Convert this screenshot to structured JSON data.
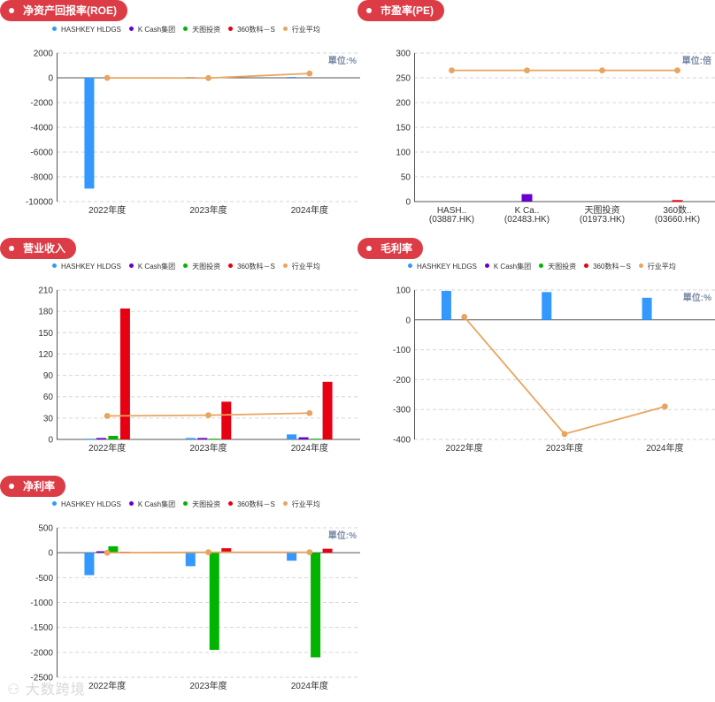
{
  "legend": [
    {
      "name": "HASHKEY HLDGS",
      "color": "#3399ff"
    },
    {
      "name": "K Cash集团",
      "color": "#6600cc"
    },
    {
      "name": "天图投资",
      "color": "#00b400"
    },
    {
      "name": "360数科－S",
      "color": "#e60012"
    },
    {
      "name": "行业平均",
      "color": "#e8a560"
    }
  ],
  "watermark": "大数跨境",
  "chart_data": [
    {
      "id": "roe",
      "type": "bar",
      "title": "净资产回报率(ROE)",
      "unit": "單位:%",
      "has_legend": true,
      "categories": [
        "2022年度",
        "2023年度",
        "2024年度"
      ],
      "yticks": [
        2000,
        0,
        -2000,
        -4000,
        -6000,
        -8000,
        -10000
      ],
      "ylim": [
        -10000,
        2000
      ],
      "series": [
        {
          "name": "HASHKEY HLDGS",
          "values": [
            -8950,
            60,
            70
          ]
        },
        {
          "name": "K Cash集团",
          "values": [
            0,
            0,
            0
          ]
        },
        {
          "name": "天图投资",
          "values": [
            0,
            0,
            0
          ]
        },
        {
          "name": "360数科－S",
          "values": [
            0,
            0,
            0
          ]
        }
      ],
      "line": {
        "name": "行业平均",
        "values": [
          -10,
          -20,
          350
        ]
      }
    },
    {
      "id": "pe",
      "type": "bar",
      "title": "市盈率(PE)",
      "unit": "單位:倍",
      "has_legend": false,
      "categories": [
        "HASH..|(03887.HK)",
        "K Ca..|(02483.HK)",
        "天图投资|(01973.HK)",
        "360数..|(03660.HK)"
      ],
      "yticks": [
        300,
        250,
        200,
        150,
        100,
        50,
        0
      ],
      "ylim": [
        0,
        300
      ],
      "values": [
        0,
        15,
        0,
        3
      ],
      "colors": [
        "#3399ff",
        "#6600cc",
        "#00b400",
        "#e60012"
      ],
      "line": {
        "name": "行业平均",
        "values": [
          265,
          265,
          265,
          265
        ]
      }
    },
    {
      "id": "revenue",
      "type": "bar",
      "title": "营业收入",
      "unit": "",
      "has_legend": true,
      "categories": [
        "2022年度",
        "2023年度",
        "2024年度"
      ],
      "yticks": [
        210,
        180,
        150,
        120,
        90,
        60,
        30,
        0
      ],
      "ylim": [
        0,
        210
      ],
      "series": [
        {
          "name": "HASHKEY HLDGS",
          "values": [
            1,
            2,
            7
          ]
        },
        {
          "name": "K Cash集团",
          "values": [
            2,
            2,
            3
          ]
        },
        {
          "name": "天图投资",
          "values": [
            5,
            1,
            1
          ]
        },
        {
          "name": "360数科－S",
          "values": [
            184,
            53,
            81
          ]
        }
      ],
      "line": {
        "name": "行业平均",
        "values": [
          33,
          34,
          37
        ]
      }
    },
    {
      "id": "gross",
      "type": "bar",
      "title": "毛利率",
      "unit": "單位:%",
      "has_legend": true,
      "categories": [
        "2022年度",
        "2023年度",
        "2024年度"
      ],
      "yticks": [
        100,
        0,
        -100,
        -200,
        -300,
        -400
      ],
      "ylim": [
        -400,
        100
      ],
      "series": [
        {
          "name": "HASHKEY HLDGS",
          "values": [
            97,
            93,
            74
          ]
        },
        {
          "name": "K Cash集团",
          "values": [
            0,
            0,
            0
          ]
        },
        {
          "name": "天图投资",
          "values": [
            0,
            0,
            0
          ]
        },
        {
          "name": "360数科－S",
          "values": [
            0,
            0,
            0
          ]
        }
      ],
      "line": {
        "name": "行业平均",
        "values": [
          10,
          -382,
          -290
        ]
      }
    },
    {
      "id": "net",
      "type": "bar",
      "title": "净利率",
      "unit": "單位:%",
      "has_legend": true,
      "categories": [
        "2022年度",
        "2023年度",
        "2024年度"
      ],
      "yticks": [
        500,
        0,
        -500,
        -1000,
        -1500,
        -2000,
        -2500
      ],
      "ylim": [
        -2500,
        500
      ],
      "series": [
        {
          "name": "HASHKEY HLDGS",
          "values": [
            -450,
            -270,
            -160
          ]
        },
        {
          "name": "K Cash集团",
          "values": [
            30,
            0,
            0
          ]
        },
        {
          "name": "天图投资",
          "values": [
            130,
            -1950,
            -2100
          ]
        },
        {
          "name": "360数科－S",
          "values": [
            20,
            90,
            80
          ]
        }
      ],
      "line": {
        "name": "行业平均",
        "values": [
          0,
          10,
          10
        ]
      }
    }
  ]
}
